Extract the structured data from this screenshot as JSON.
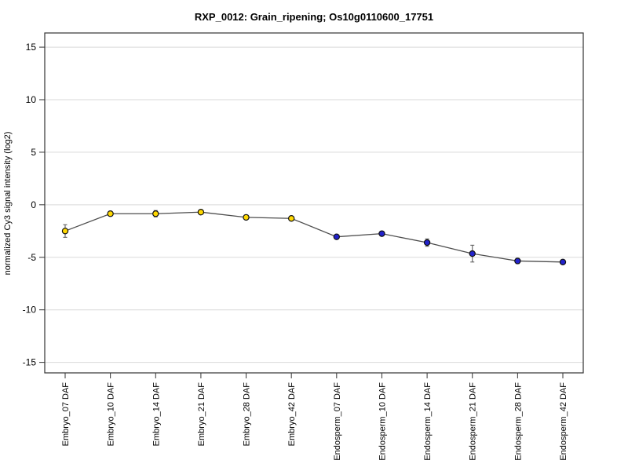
{
  "page": {
    "background": "#FFFFFF"
  },
  "chart_data": {
    "type": "line",
    "title": "RXP_0012: Grain_ripening; Os10g0110600_17751",
    "ylabel": "normalized  Cy3 signal intensity (log2)",
    "xlabel": "",
    "categories": [
      "Embryo_07 DAF",
      "Embryo_10 DAF",
      "Embryo_14 DAF",
      "Embryo_21 DAF",
      "Embryo_28 DAF",
      "Embryo_42 DAF",
      "Endosperm_07 DAF",
      "Endosperm_10 DAF",
      "Endosperm_14 DAF",
      "Endosperm_21 DAF",
      "Endosperm_28 DAF",
      "Endosperm_42 DAF"
    ],
    "values": [
      -2.5,
      -0.85,
      -0.85,
      -0.7,
      -1.2,
      -1.3,
      -3.05,
      -2.75,
      -3.6,
      -4.65,
      -5.35,
      -5.45
    ],
    "errors": [
      0.6,
      0.15,
      0.3,
      0.1,
      0.15,
      0.1,
      0.1,
      0.1,
      0.35,
      0.8,
      0.25,
      0.1
    ],
    "point_groups": [
      "Embryo",
      "Embryo",
      "Embryo",
      "Embryo",
      "Embryo",
      "Embryo",
      "Endosperm",
      "Endosperm",
      "Endosperm",
      "Endosperm",
      "Endosperm",
      "Endosperm"
    ],
    "group_colors": {
      "Embryo": "#FFD800",
      "Endosperm": "#2222CC"
    },
    "point_stroke_color": "#111111",
    "line_color": "#4D4D4D",
    "error_color": "#606060",
    "grid_color": "#D9D9D9",
    "box_color": "#333333",
    "tick_color": "#333333",
    "yticks": [
      15,
      10,
      5,
      0,
      -5,
      -10,
      -15
    ],
    "ylim": [
      -16.0,
      16.35
    ],
    "grid": true,
    "legend_position": "none"
  }
}
